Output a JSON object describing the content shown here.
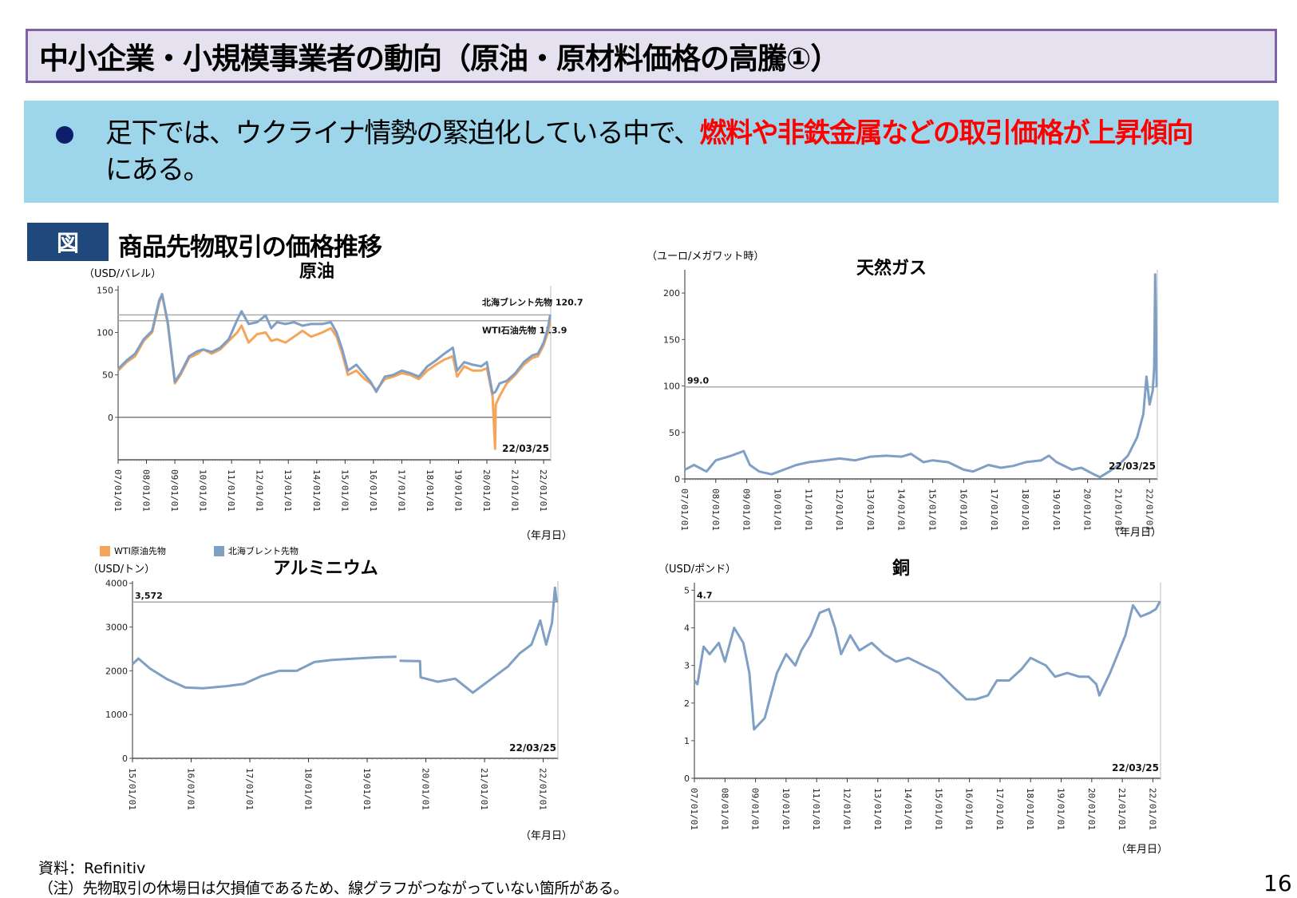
{
  "header": {
    "title": "中小企業・小規模事業者の動向（原油・原材料価格の高騰①）"
  },
  "summary": {
    "bullet_text_prefix": "足下では、ウクライナ情勢の緊迫化している中で、",
    "bullet_text_highlight": "燃料や非鉄金属などの取引価格が上昇傾向",
    "bullet_text_suffix": "にある。",
    "highlight_color": "#ff0000"
  },
  "figure": {
    "label": "図",
    "title": "商品先物取引の価格推移"
  },
  "footer": {
    "source": "資料：Refinitiv",
    "note": "（注）先物取引の休場日は欠損値であるため、線グラフがつながっていない箇所がある。",
    "page_number": "16"
  },
  "chart_data": [
    {
      "id": "crude-oil",
      "type": "line",
      "title": "原油",
      "ylabel": "（USD/バレル）",
      "xlabel": "（年月日）",
      "ylim": [
        -50,
        155
      ],
      "yticks": [
        0,
        50,
        100,
        150
      ],
      "x_ticks": [
        "07/01/01",
        "08/01/01",
        "09/01/01",
        "10/01/01",
        "11/01/01",
        "12/01/01",
        "13/01/01",
        "14/01/01",
        "15/01/01",
        "16/01/01",
        "17/01/01",
        "18/01/01",
        "19/01/01",
        "20/01/01",
        "21/01/01",
        "22/01/01"
      ],
      "end_date_label": "22/03/25",
      "legend": [
        "WTI原油先物",
        "北海ブレント先物"
      ],
      "annotations": [
        {
          "label": "北海ブレント先物",
          "value": "120.7",
          "y": 120.7
        },
        {
          "label": "WTI石油先物",
          "value": "113.9",
          "y": 113.9
        }
      ],
      "series": [
        {
          "name": "WTI原油先物",
          "color": "#f5a55a",
          "x": [
            2007.0,
            2007.3,
            2007.6,
            2007.9,
            2008.2,
            2008.45,
            2008.55,
            2008.75,
            2009.0,
            2009.2,
            2009.5,
            2009.8,
            2010.0,
            2010.3,
            2010.6,
            2010.9,
            2011.2,
            2011.35,
            2011.6,
            2011.9,
            2012.2,
            2012.4,
            2012.6,
            2012.9,
            2013.2,
            2013.5,
            2013.8,
            2014.2,
            2014.5,
            2014.7,
            2014.9,
            2015.1,
            2015.4,
            2015.7,
            2015.9,
            2016.1,
            2016.4,
            2016.7,
            2017.0,
            2017.3,
            2017.6,
            2017.9,
            2018.2,
            2018.5,
            2018.8,
            2018.95,
            2019.2,
            2019.5,
            2019.8,
            2020.0,
            2020.2,
            2020.29,
            2020.31,
            2020.45,
            2020.7,
            2021.0,
            2021.3,
            2021.6,
            2021.8,
            2022.0,
            2022.15,
            2022.23
          ],
          "values": [
            55,
            65,
            72,
            90,
            100,
            135,
            145,
            110,
            40,
            50,
            70,
            75,
            80,
            75,
            80,
            90,
            100,
            108,
            88,
            98,
            100,
            90,
            92,
            88,
            95,
            102,
            95,
            100,
            105,
            95,
            75,
            50,
            55,
            45,
            40,
            32,
            45,
            48,
            52,
            50,
            45,
            55,
            62,
            68,
            72,
            48,
            60,
            55,
            55,
            58,
            25,
            -37,
            15,
            25,
            40,
            50,
            62,
            70,
            72,
            85,
            100,
            113.9
          ]
        },
        {
          "name": "北海ブレント先物",
          "color": "#7f9fc4",
          "x": [
            2007.0,
            2007.3,
            2007.6,
            2007.9,
            2008.2,
            2008.45,
            2008.55,
            2008.75,
            2009.0,
            2009.2,
            2009.5,
            2009.8,
            2010.0,
            2010.3,
            2010.6,
            2010.9,
            2011.2,
            2011.35,
            2011.6,
            2011.9,
            2012.2,
            2012.4,
            2012.6,
            2012.9,
            2013.2,
            2013.5,
            2013.8,
            2014.2,
            2014.5,
            2014.7,
            2014.9,
            2015.1,
            2015.4,
            2015.7,
            2015.9,
            2016.1,
            2016.4,
            2016.7,
            2017.0,
            2017.3,
            2017.6,
            2017.9,
            2018.2,
            2018.5,
            2018.8,
            2018.95,
            2019.2,
            2019.5,
            2019.8,
            2020.0,
            2020.2,
            2020.3,
            2020.45,
            2020.7,
            2021.0,
            2021.3,
            2021.6,
            2021.8,
            2022.0,
            2022.15,
            2022.23
          ],
          "values": [
            57,
            67,
            75,
            92,
            102,
            138,
            145,
            112,
            42,
            52,
            72,
            78,
            80,
            77,
            82,
            92,
            115,
            125,
            110,
            112,
            120,
            105,
            112,
            110,
            112,
            108,
            110,
            110,
            112,
            100,
            80,
            55,
            62,
            50,
            42,
            30,
            48,
            50,
            55,
            52,
            48,
            60,
            67,
            75,
            82,
            55,
            65,
            62,
            60,
            65,
            28,
            30,
            40,
            43,
            52,
            65,
            73,
            75,
            88,
            105,
            120.7
          ]
        }
      ]
    },
    {
      "id": "natural-gas",
      "type": "line",
      "title": "天然ガス",
      "ylabel": "（ユーロ/メガワット時）",
      "xlabel": "（年月日）",
      "ylim": [
        0,
        225
      ],
      "yticks": [
        0,
        50,
        100,
        150,
        200
      ],
      "x_ticks": [
        "07/01/01",
        "08/01/01",
        "09/01/01",
        "10/01/01",
        "11/01/01",
        "12/01/01",
        "13/01/01",
        "14/01/01",
        "15/01/01",
        "16/01/01",
        "17/01/01",
        "18/01/01",
        "19/01/01",
        "20/01/01",
        "21/01/01",
        "22/01/01"
      ],
      "end_date_label": "22/03/25",
      "annotations": [
        {
          "label": "99.0",
          "value": "99.0",
          "y": 99.0
        }
      ],
      "series": [
        {
          "name": "天然ガス",
          "color": "#7f9fc4",
          "x": [
            2007.0,
            2007.3,
            2007.7,
            2008.0,
            2008.5,
            2008.9,
            2009.1,
            2009.4,
            2009.8,
            2010.2,
            2010.6,
            2011.0,
            2011.5,
            2012.0,
            2012.5,
            2013.0,
            2013.5,
            2014.0,
            2014.3,
            2014.7,
            2015.0,
            2015.5,
            2016.0,
            2016.3,
            2016.8,
            2017.2,
            2017.6,
            2018.0,
            2018.5,
            2018.75,
            2019.0,
            2019.5,
            2019.8,
            2020.2,
            2020.4,
            2020.7,
            2021.0,
            2021.3,
            2021.6,
            2021.8,
            2021.9,
            2022.0,
            2022.1,
            2022.15,
            2022.18,
            2022.21,
            2022.23
          ],
          "values": [
            10,
            15,
            8,
            20,
            25,
            30,
            15,
            8,
            5,
            10,
            15,
            18,
            20,
            22,
            20,
            24,
            25,
            24,
            27,
            18,
            20,
            18,
            10,
            8,
            15,
            12,
            14,
            18,
            20,
            25,
            18,
            10,
            12,
            5,
            2,
            8,
            15,
            25,
            45,
            70,
            110,
            80,
            95,
            120,
            220,
            160,
            99
          ]
        }
      ]
    },
    {
      "id": "aluminium",
      "type": "line",
      "title": "アルミニウム",
      "ylabel": "（USD/トン）",
      "xlabel": "（年月日）",
      "ylim": [
        0,
        4050
      ],
      "yticks": [
        0,
        1000,
        2000,
        3000,
        4000
      ],
      "x_ticks": [
        "15/01/01",
        "16/01/01",
        "17/01/01",
        "18/01/01",
        "19/01/01",
        "20/01/01",
        "21/01/01",
        "22/01/01"
      ],
      "end_date_label": "22/03/25",
      "annotations": [
        {
          "label": "3,572",
          "value": "3,572",
          "y": 3572
        }
      ],
      "series": [
        {
          "name": "アルミニウム",
          "color": "#7f9fc4",
          "x": [
            2015.0,
            2015.1,
            2015.3,
            2015.6,
            2015.9,
            2016.2,
            2016.6,
            2016.9,
            2017.2,
            2017.5,
            2017.8,
            2018.1,
            2018.4,
            2018.8,
            2019.2,
            2019.5,
            null,
            2019.55,
            2019.9,
            2019.91,
            2020.2,
            2020.5,
            2020.8,
            2021.1,
            2021.4,
            2021.6,
            2021.8,
            2021.95,
            2022.05,
            2022.15,
            2022.2,
            2022.23
          ],
          "values": [
            2150,
            2280,
            2050,
            1800,
            1620,
            1600,
            1650,
            1700,
            1880,
            2000,
            2000,
            2200,
            2250,
            2280,
            2310,
            2320,
            null,
            2230,
            2220,
            1850,
            1750,
            1820,
            1500,
            1800,
            2100,
            2400,
            2600,
            3150,
            2600,
            3100,
            3900,
            3572
          ]
        }
      ]
    },
    {
      "id": "copper",
      "type": "line",
      "title": "銅",
      "ylabel": "（USD/ポンド）",
      "xlabel": "（年月日）",
      "ylim": [
        0,
        5.2
      ],
      "yticks": [
        0,
        1,
        2,
        3,
        4,
        5
      ],
      "x_ticks": [
        "07/01/01",
        "08/01/01",
        "09/01/01",
        "10/01/01",
        "11/01/01",
        "12/01/01",
        "13/01/01",
        "14/01/01",
        "15/01/01",
        "16/01/01",
        "17/01/01",
        "18/01/01",
        "19/01/01",
        "20/01/01",
        "21/01/01",
        "22/01/01"
      ],
      "end_date_label": "22/03/25",
      "annotations": [
        {
          "label": "4.7",
          "value": "4.7",
          "y": 4.7
        }
      ],
      "series": [
        {
          "name": "銅",
          "color": "#7f9fc4",
          "x": [
            2007.0,
            2007.1,
            2007.3,
            2007.5,
            2007.8,
            2008.0,
            2008.3,
            2008.6,
            2008.8,
            2008.95,
            2009.3,
            2009.7,
            2010.0,
            2010.3,
            2010.5,
            2010.8,
            2011.1,
            2011.4,
            2011.6,
            2011.8,
            2012.1,
            2012.4,
            2012.8,
            2013.2,
            2013.6,
            2014.0,
            2014.5,
            2015.0,
            2015.5,
            2015.9,
            2016.2,
            2016.6,
            2016.9,
            2017.3,
            2017.7,
            2018.0,
            2018.5,
            2018.8,
            2019.2,
            2019.6,
            2019.9,
            2020.15,
            2020.25,
            2020.6,
            2020.9,
            2021.1,
            2021.35,
            2021.6,
            2021.9,
            2022.1,
            2022.23
          ],
          "values": [
            2.6,
            2.5,
            3.5,
            3.3,
            3.6,
            3.1,
            4.0,
            3.6,
            2.8,
            1.3,
            1.6,
            2.8,
            3.3,
            3.0,
            3.4,
            3.8,
            4.4,
            4.5,
            4.0,
            3.3,
            3.8,
            3.4,
            3.6,
            3.3,
            3.1,
            3.2,
            3.0,
            2.8,
            2.4,
            2.1,
            2.1,
            2.2,
            2.6,
            2.6,
            2.9,
            3.2,
            3.0,
            2.7,
            2.8,
            2.7,
            2.7,
            2.5,
            2.2,
            2.8,
            3.4,
            3.8,
            4.6,
            4.3,
            4.4,
            4.5,
            4.7
          ]
        }
      ]
    }
  ]
}
